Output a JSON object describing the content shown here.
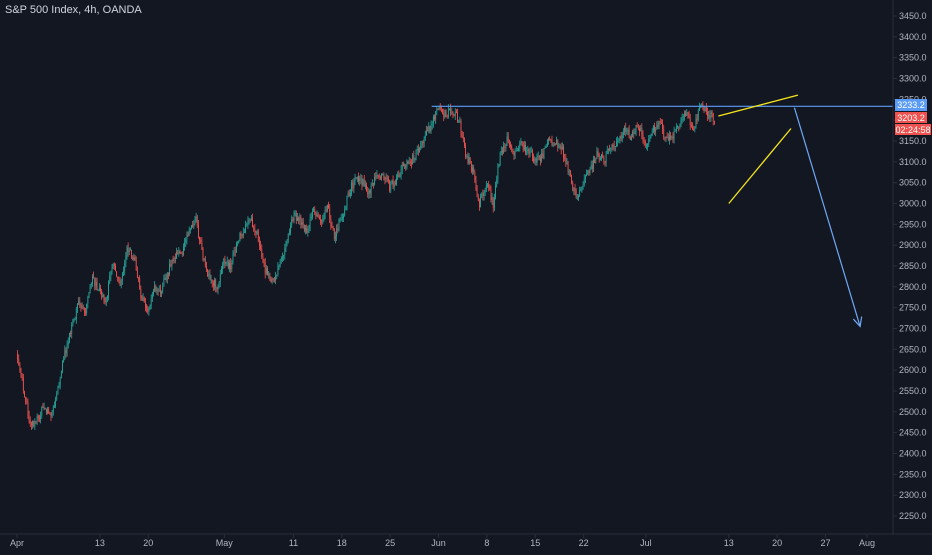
{
  "header": {
    "title": "S&P 500 Index, 4h, OANDA"
  },
  "price_labels": {
    "resistance": "3233.2",
    "last_price": "3203.2",
    "countdown": "02:24:58"
  },
  "colors": {
    "background": "#131722",
    "up": "#26a69a",
    "down": "#ef5350",
    "resistance_line": "#5b9cf6",
    "channel": "#f5e51b",
    "arrow": "#6fa8f5",
    "axis_text": "#b2b5be"
  },
  "chart_data": {
    "type": "candlestick",
    "title": "S&P 500 Index, 4h, OANDA",
    "y_axis": {
      "position": "right",
      "range": [
        2225,
        3475
      ],
      "ticks": [
        2250,
        2300,
        2350,
        2400,
        2450,
        2500,
        2550,
        2600,
        2650,
        2700,
        2750,
        2800,
        2850,
        2900,
        2950,
        3000,
        3050,
        3100,
        3150,
        3200,
        3250,
        3300,
        3350,
        3400,
        3450
      ],
      "tick_labels": [
        "2250.0",
        "2300.0",
        "2350.0",
        "2400.0",
        "2450.0",
        "2500.0",
        "2550.0",
        "2600.0",
        "2650.0",
        "2700.0",
        "2750.0",
        "2800.0",
        "2850.0",
        "2900.0",
        "2950.0",
        "3000.0",
        "3050.0",
        "3100.0",
        "3150.0",
        "3200.0",
        "3250.0",
        "3300.0",
        "3350.0",
        "3400.0",
        "3450.0"
      ]
    },
    "x_axis": {
      "ticks": [
        {
          "label": "Apr",
          "day": 1
        },
        {
          "label": "13",
          "day": 13
        },
        {
          "label": "20",
          "day": 20
        },
        {
          "label": "May",
          "day": 31
        },
        {
          "label": "11",
          "day": 41
        },
        {
          "label": "18",
          "day": 48
        },
        {
          "label": "25",
          "day": 55
        },
        {
          "label": "Jun",
          "day": 62
        },
        {
          "label": "8",
          "day": 69
        },
        {
          "label": "15",
          "day": 76
        },
        {
          "label": "22",
          "day": 83
        },
        {
          "label": "Jul",
          "day": 92
        },
        {
          "label": "13",
          "day": 104
        },
        {
          "label": "20",
          "day": 111
        },
        {
          "label": "27",
          "day": 118
        },
        {
          "label": "Aug",
          "day": 124
        }
      ]
    },
    "price_path": [
      [
        1,
        2640
      ],
      [
        2,
        2560
      ],
      [
        3,
        2470
      ],
      [
        4,
        2480
      ],
      [
        5,
        2520
      ],
      [
        6,
        2480
      ],
      [
        7,
        2560
      ],
      [
        8,
        2640
      ],
      [
        9,
        2700
      ],
      [
        10,
        2760
      ],
      [
        11,
        2740
      ],
      [
        12,
        2820
      ],
      [
        13,
        2790
      ],
      [
        14,
        2770
      ],
      [
        15,
        2860
      ],
      [
        16,
        2800
      ],
      [
        17,
        2890
      ],
      [
        18,
        2870
      ],
      [
        19,
        2780
      ],
      [
        20,
        2740
      ],
      [
        21,
        2800
      ],
      [
        22,
        2790
      ],
      [
        23,
        2840
      ],
      [
        24,
        2870
      ],
      [
        25,
        2880
      ],
      [
        26,
        2940
      ],
      [
        27,
        2960
      ],
      [
        28,
        2870
      ],
      [
        29,
        2820
      ],
      [
        30,
        2800
      ],
      [
        31,
        2860
      ],
      [
        32,
        2850
      ],
      [
        33,
        2910
      ],
      [
        34,
        2940
      ],
      [
        35,
        2960
      ],
      [
        36,
        2920
      ],
      [
        37,
        2840
      ],
      [
        38,
        2810
      ],
      [
        39,
        2850
      ],
      [
        40,
        2890
      ],
      [
        41,
        2970
      ],
      [
        42,
        2960
      ],
      [
        43,
        2930
      ],
      [
        44,
        2980
      ],
      [
        45,
        2950
      ],
      [
        46,
        2990
      ],
      [
        47,
        2920
      ],
      [
        48,
        2960
      ],
      [
        49,
        3020
      ],
      [
        50,
        3060
      ],
      [
        51,
        3050
      ],
      [
        52,
        3030
      ],
      [
        53,
        3060
      ],
      [
        54,
        3070
      ],
      [
        55,
        3040
      ],
      [
        56,
        3060
      ],
      [
        57,
        3090
      ],
      [
        58,
        3100
      ],
      [
        59,
        3120
      ],
      [
        60,
        3160
      ],
      [
        61,
        3190
      ],
      [
        62,
        3230
      ],
      [
        63,
        3215
      ],
      [
        64,
        3225
      ],
      [
        65,
        3200
      ],
      [
        66,
        3120
      ],
      [
        67,
        3080
      ],
      [
        68,
        3000
      ],
      [
        69,
        3050
      ],
      [
        70,
        3000
      ],
      [
        71,
        3120
      ],
      [
        72,
        3150
      ],
      [
        73,
        3125
      ],
      [
        74,
        3140
      ],
      [
        75,
        3130
      ],
      [
        76,
        3100
      ],
      [
        77,
        3110
      ],
      [
        78,
        3150
      ],
      [
        79,
        3145
      ],
      [
        80,
        3130
      ],
      [
        81,
        3070
      ],
      [
        82,
        3010
      ],
      [
        83,
        3050
      ],
      [
        84,
        3080
      ],
      [
        85,
        3120
      ],
      [
        86,
        3100
      ],
      [
        87,
        3140
      ],
      [
        88,
        3150
      ],
      [
        89,
        3180
      ],
      [
        90,
        3160
      ],
      [
        91,
        3190
      ],
      [
        92,
        3140
      ],
      [
        93,
        3170
      ],
      [
        94,
        3200
      ],
      [
        95,
        3150
      ],
      [
        96,
        3160
      ],
      [
        97,
        3190
      ],
      [
        98,
        3225
      ],
      [
        99,
        3170
      ],
      [
        100,
        3240
      ],
      [
        101,
        3215
      ],
      [
        102,
        3203
      ]
    ],
    "annotations": [
      {
        "type": "horizontal_line",
        "price": 3233.2,
        "color": "#5b9cf6"
      },
      {
        "type": "channel",
        "upper": [
          [
            102.5,
            3210
          ],
          [
            114,
            3260
          ]
        ],
        "lower": [
          [
            104,
            3000
          ],
          [
            113,
            3180
          ]
        ],
        "color": "#f5e51b"
      },
      {
        "type": "arrow",
        "from": [
          113.5,
          3230
        ],
        "to": [
          123,
          2705
        ],
        "color": "#6fa8f5"
      }
    ]
  }
}
